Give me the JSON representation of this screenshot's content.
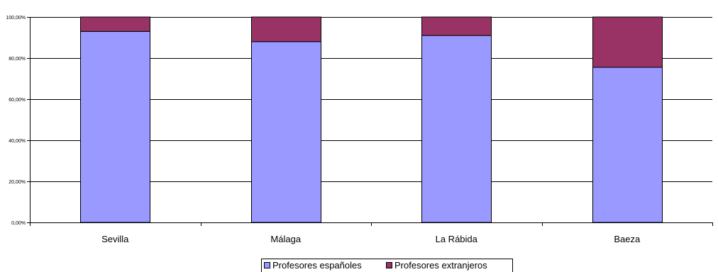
{
  "chart_data": {
    "type": "bar",
    "stacked": true,
    "categories": [
      "Sevilla",
      "Málaga",
      "La Rábida",
      "Baeza"
    ],
    "series": [
      {
        "name": "Profesores españoles",
        "values": [
          93,
          88,
          91,
          75.5
        ],
        "color": "#9999ff"
      },
      {
        "name": "Profesores extranjeros",
        "values": [
          7,
          12,
          9,
          24.5
        ],
        "color": "#993366"
      }
    ],
    "ylim": [
      0,
      100
    ],
    "yticks": [
      0,
      20,
      40,
      60,
      80,
      100
    ],
    "ytick_labels": [
      "0,00%",
      "20,00%",
      "40,00%",
      "60,00%",
      "80,00%",
      "100,00%"
    ],
    "grid": true,
    "legend": "bottom"
  }
}
